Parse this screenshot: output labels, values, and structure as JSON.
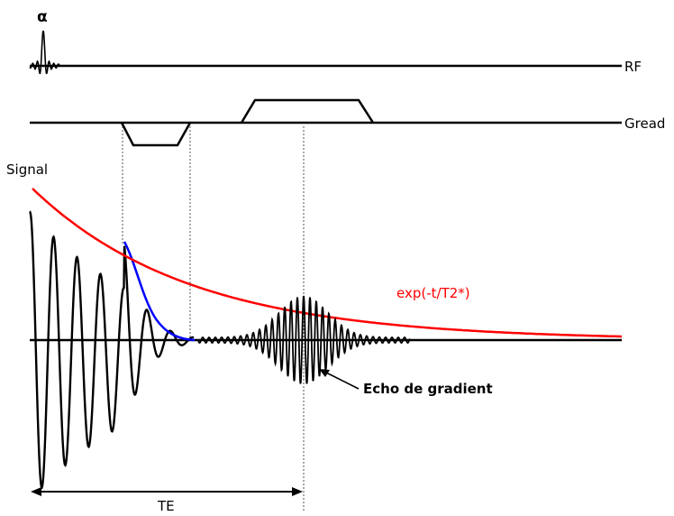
{
  "labels": {
    "alpha": "α",
    "rf": "RF",
    "gread": "Gread",
    "signal": "Signal",
    "decay": "exp(-t/T2*)",
    "echo": "Echo de gradient",
    "te": "TE"
  },
  "colors": {
    "axis": "#000000",
    "decay_envelope": "#ff0000",
    "fid_decay": "#0000ff",
    "guide": "#555555"
  }
}
